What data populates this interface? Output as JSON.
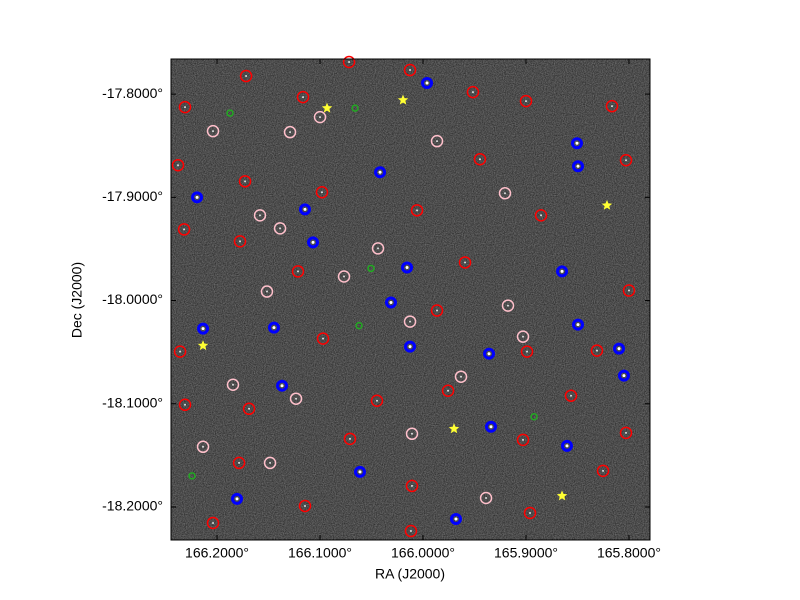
{
  "chart_data": {
    "type": "scatter",
    "xlabel": "RA (J2000)",
    "ylabel": "Dec (J2000)",
    "xlim": [
      166.2447,
      165.7796
    ],
    "ylim": [
      -18.232,
      -17.766
    ],
    "xticks": [
      {
        "value": 166.2,
        "label": "166.2000°"
      },
      {
        "value": 166.1,
        "label": "166.1000°"
      },
      {
        "value": 166.0,
        "label": "166.0000°"
      },
      {
        "value": 165.9,
        "label": "165.9000°"
      },
      {
        "value": 165.8,
        "label": "165.8000°"
      }
    ],
    "yticks": [
      {
        "value": -17.8,
        "label": "-17.8000°"
      },
      {
        "value": -17.9,
        "label": "-17.9000°"
      },
      {
        "value": -18.0,
        "label": "-18.0000°"
      },
      {
        "value": -18.1,
        "label": "-18.1000°"
      },
      {
        "value": -18.2,
        "label": "-18.2000°"
      }
    ],
    "series": [
      {
        "color": "#ff0000",
        "marker": "ring",
        "x": [
          166.2311,
          166.1718,
          166.1165,
          166.0718,
          166.0126,
          165.9515,
          165.9,
          165.8165,
          166.2379,
          166.1728,
          166.0981,
          166.0058,
          165.9447,
          165.8854,
          165.8029,
          166.232,
          166.1777,
          166.1214,
          165.9592,
          165.8,
          166.2359,
          166.0971,
          165.9864,
          165.899,
          165.8311,
          166.2311,
          166.1689,
          166.0447,
          165.9757,
          165.8563,
          165.8029,
          166.1786,
          166.0709,
          166.0107,
          165.9029,
          165.8252,
          166.2039,
          166.1146,
          166.0117,
          165.8961
        ],
        "y": [
          -17.8126,
          -17.7825,
          -17.8029,
          -17.7689,
          -17.7767,
          -17.7981,
          -17.8068,
          -17.8117,
          -17.8689,
          -17.8845,
          -17.8951,
          -17.9126,
          -17.8631,
          -17.9175,
          -17.8641,
          -17.9311,
          -17.9427,
          -17.9718,
          -17.9631,
          -17.9903,
          -18.0495,
          -18.0369,
          -18.0097,
          -18.0495,
          -18.0485,
          -18.101,
          -18.1049,
          -18.0971,
          -18.0874,
          -18.0922,
          -18.1282,
          -18.1573,
          -18.134,
          -18.1796,
          -18.135,
          -18.165,
          -18.2155,
          -18.199,
          -18.2233,
          -18.2058
        ]
      },
      {
        "color": "#ffc0cb",
        "marker": "ring",
        "x": [
          166.2039,
          166.1,
          166.1291,
          165.9864,
          165.9204,
          166.1583,
          166.1388,
          166.0437,
          166.0767,
          166.1515,
          165.9175,
          166.0126,
          165.9631,
          166.1233,
          166.0107,
          166.2136,
          166.1485,
          165.9388,
          165.9029,
          166.1845
        ],
        "y": [
          -17.8359,
          -17.8223,
          -17.8369,
          -17.8456,
          -17.8961,
          -17.9175,
          -17.9301,
          -17.9495,
          -17.9767,
          -17.9913,
          -18.0049,
          -18.0204,
          -18.0738,
          -18.0951,
          -18.1291,
          -18.1417,
          -18.1573,
          -18.1913,
          -18.035,
          -18.0816
        ]
      },
      {
        "color": "#0000ff",
        "marker": "filled-ring",
        "x": [
          165.9961,
          165.8505,
          165.8495,
          166.0417,
          166.2194,
          166.1146,
          166.1068,
          166.0155,
          165.865,
          166.2136,
          166.1447,
          166.0311,
          165.8495,
          165.8097,
          166.0126,
          165.9359,
          166.1369,
          165.8049,
          165.934,
          165.8602,
          166.1806,
          166.0612,
          165.968
        ],
        "y": [
          -17.7893,
          -17.8476,
          -17.8699,
          -17.8757,
          -17.9,
          -17.9117,
          -17.9437,
          -17.968,
          -17.9718,
          -18.0272,
          -18.0262,
          -18.0019,
          -18.0233,
          -18.0466,
          -18.0447,
          -18.0515,
          -18.0825,
          -18.0728,
          -18.1223,
          -18.1408,
          -18.1922,
          -18.166,
          -18.2117
        ]
      },
      {
        "color": "#22aa22",
        "marker": "small-ring",
        "x": [
          166.1874,
          166.066,
          166.0505,
          166.0621,
          165.8922,
          166.2243
        ],
        "y": [
          -17.8184,
          -17.8136,
          -17.9689,
          -18.0243,
          -18.1126,
          -18.1699
        ]
      },
      {
        "color": "#ffff33",
        "marker": "star",
        "x": [
          166.0932,
          166.0194,
          165.8214,
          166.2136,
          165.9699,
          165.865
        ],
        "y": [
          -17.8136,
          -17.8058,
          -17.9078,
          -18.0437,
          -18.1243,
          -18.1893
        ]
      }
    ]
  }
}
